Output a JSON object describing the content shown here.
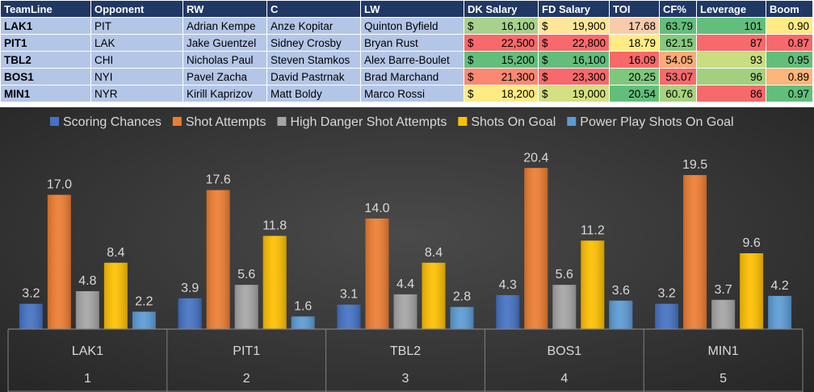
{
  "table": {
    "headers": [
      "TeamLine",
      "Opponent",
      "RW",
      "C",
      "LW",
      "DK Salary",
      "FD Salary",
      "TOI",
      "CF%",
      "Leverage",
      "Boom"
    ],
    "currency_symbol": "$",
    "rows": [
      {
        "team": "LAK1",
        "opponent": "PIT",
        "rw": "Adrian Kempe",
        "c": "Anze Kopitar",
        "lw": "Quinton Byfield",
        "dk": "16,100",
        "fd": "19,900",
        "toi": "17.68",
        "cf": "63.79",
        "lev": "101",
        "boom": "0.90",
        "colors": {
          "dk": "#a9d18e",
          "fd": "#ffe699",
          "toi": "#f8cbad",
          "cf": "#63be7b",
          "lev": "#63be7b",
          "boom": "#ffeb84"
        }
      },
      {
        "team": "PIT1",
        "opponent": "LAK",
        "rw": "Jake Guentzel",
        "c": "Sidney Crosby",
        "lw": "Bryan Rust",
        "dk": "22,500",
        "fd": "22,800",
        "toi": "18.79",
        "cf": "62.15",
        "lev": "87",
        "boom": "0.87",
        "colors": {
          "dk": "#f8696b",
          "fd": "#f8696b",
          "toi": "#ffeb84",
          "cf": "#86c97e",
          "lev": "#f8696b",
          "boom": "#f8696b"
        }
      },
      {
        "team": "TBL2",
        "opponent": "CHI",
        "rw": "Nicholas Paul",
        "c": "Steven Stamkos",
        "lw": "Alex Barre-Boulet",
        "dk": "15,200",
        "fd": "16,100",
        "toi": "16.09",
        "cf": "54.05",
        "lev": "93",
        "boom": "0.95",
        "colors": {
          "dk": "#63be7b",
          "fd": "#63be7b",
          "toi": "#f8696b",
          "cf": "#fcaa78",
          "lev": "#c9dd81",
          "boom": "#63be7b"
        }
      },
      {
        "team": "BOS1",
        "opponent": "NYI",
        "rw": "Pavel Zacha",
        "c": "David Pastrnak",
        "lw": "Brad Marchand",
        "dk": "21,300",
        "fd": "23,300",
        "toi": "20.25",
        "cf": "53.07",
        "lev": "96",
        "boom": "0.89",
        "colors": {
          "dk": "#fa8872",
          "fd": "#f8696b",
          "toi": "#7fc77d",
          "cf": "#f8696b",
          "lev": "#a2d07f",
          "boom": "#fcb57a"
        }
      },
      {
        "team": "MIN1",
        "opponent": "NYR",
        "rw": "Kirill Kaprizov",
        "c": "Matt Boldy",
        "lw": "Marco Rossi",
        "dk": "18,200",
        "fd": "19,000",
        "toi": "20.54",
        "cf": "60.76",
        "lev": "86",
        "boom": "0.97",
        "colors": {
          "dk": "#ffeb84",
          "fd": "#d4e082",
          "toi": "#63be7b",
          "cf": "#a8d27f",
          "lev": "#f8696b",
          "boom": "#63be7b"
        }
      }
    ]
  },
  "chart_data": {
    "type": "bar",
    "title": "",
    "xlabel": "",
    "ylabel": "",
    "ylim": [
      0,
      24
    ],
    "grid": false,
    "legend_position": "top",
    "categories": [
      "LAK1",
      "PIT1",
      "TBL2",
      "BOS1",
      "MIN1"
    ],
    "category_indices": [
      "1",
      "2",
      "3",
      "4",
      "5"
    ],
    "series": [
      {
        "name": "Scoring Chances",
        "color": "#4472c4",
        "values": [
          3.2,
          3.9,
          3.1,
          4.3,
          3.2
        ]
      },
      {
        "name": "Shot Attempts",
        "color": "#ed7d31",
        "values": [
          17.0,
          17.6,
          14.0,
          20.4,
          19.5
        ]
      },
      {
        "name": "High Danger Shot Attempts",
        "color": "#a5a5a5",
        "values": [
          4.8,
          5.6,
          4.4,
          5.6,
          3.7
        ]
      },
      {
        "name": "Shots On Goal",
        "color": "#ffc000",
        "values": [
          8.4,
          11.8,
          8.4,
          11.2,
          9.6
        ]
      },
      {
        "name": "Power Play Shots On Goal",
        "color": "#5b9bd5",
        "values": [
          2.2,
          1.6,
          2.8,
          3.6,
          4.2
        ]
      }
    ]
  }
}
